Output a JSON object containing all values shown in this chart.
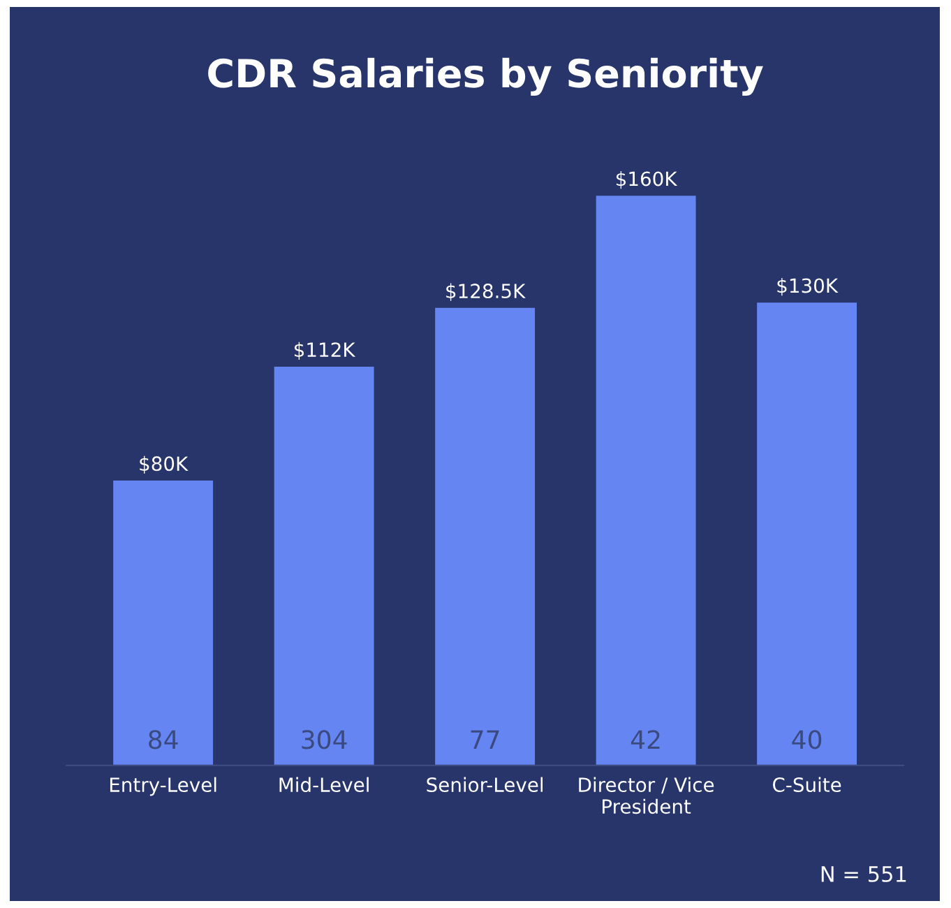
{
  "chart_data": {
    "type": "bar",
    "title": "CDR Salaries by Seniority",
    "categories": [
      "Entry-Level",
      "Mid-Level",
      "Senior-Level",
      "Director / Vice\nPresident",
      "C-Suite"
    ],
    "values": [
      80,
      112,
      128.5,
      160,
      130
    ],
    "value_labels": [
      "$80K",
      "$112K",
      "$128.5K",
      "$160K",
      "$130K"
    ],
    "color": "#6586f2",
    "annotations": [
      "84",
      "304",
      "77",
      "42",
      "40",
      "N = 551"
    ],
    "grid": false,
    "legend": false
  }
}
